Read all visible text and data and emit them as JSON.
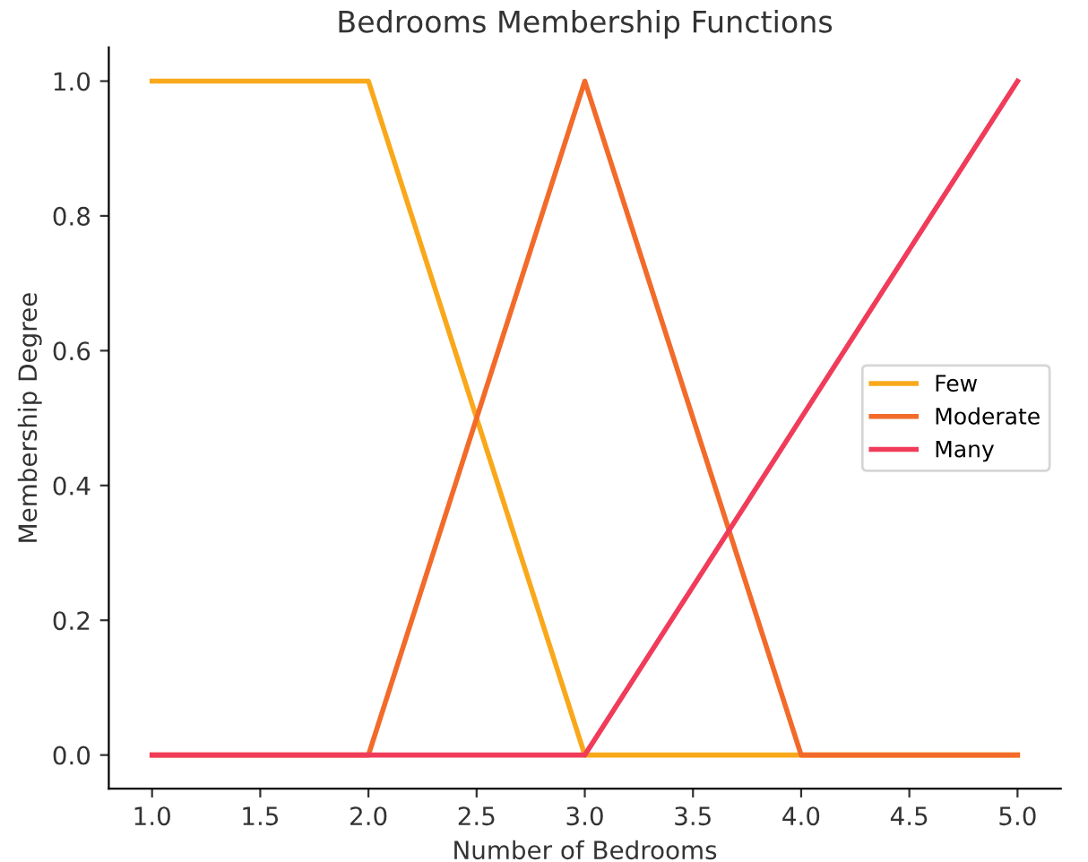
{
  "chart_data": {
    "type": "line",
    "title": "Bedrooms Membership Functions",
    "xlabel": "Number of Bedrooms",
    "ylabel": "Membership Degree",
    "x": [
      1,
      2,
      3,
      4,
      5
    ],
    "series": [
      {
        "name": "Few",
        "color": "#f9a81b",
        "values": [
          1,
          1,
          0,
          0,
          0
        ]
      },
      {
        "name": "Moderate",
        "color": "#f26b2a",
        "values": [
          0,
          0,
          1,
          0,
          0
        ]
      },
      {
        "name": "Many",
        "color": "#f03c5a",
        "values": [
          0,
          0,
          0,
          0.5,
          1
        ]
      }
    ],
    "xlim": [
      0.8,
      5.2
    ],
    "ylim": [
      -0.05,
      1.05
    ],
    "xticks": [
      {
        "value": 1,
        "label": "1.0"
      },
      {
        "value": 1.5,
        "label": "1.5"
      },
      {
        "value": 2,
        "label": "2.0"
      },
      {
        "value": 2.5,
        "label": "2.5"
      },
      {
        "value": 3,
        "label": "3.0"
      },
      {
        "value": 3.5,
        "label": "3.5"
      },
      {
        "value": 4,
        "label": "4.0"
      },
      {
        "value": 4.5,
        "label": "4.5"
      },
      {
        "value": 5,
        "label": "5.0"
      }
    ],
    "yticks": [
      {
        "value": 0,
        "label": "0.0"
      },
      {
        "value": 0.2,
        "label": "0.2"
      },
      {
        "value": 0.4,
        "label": "0.4"
      },
      {
        "value": 0.6,
        "label": "0.6"
      },
      {
        "value": 0.8,
        "label": "0.8"
      },
      {
        "value": 1,
        "label": "1.0"
      }
    ],
    "grid": false,
    "legend": "right",
    "marker": "none",
    "line_style": "solid"
  }
}
